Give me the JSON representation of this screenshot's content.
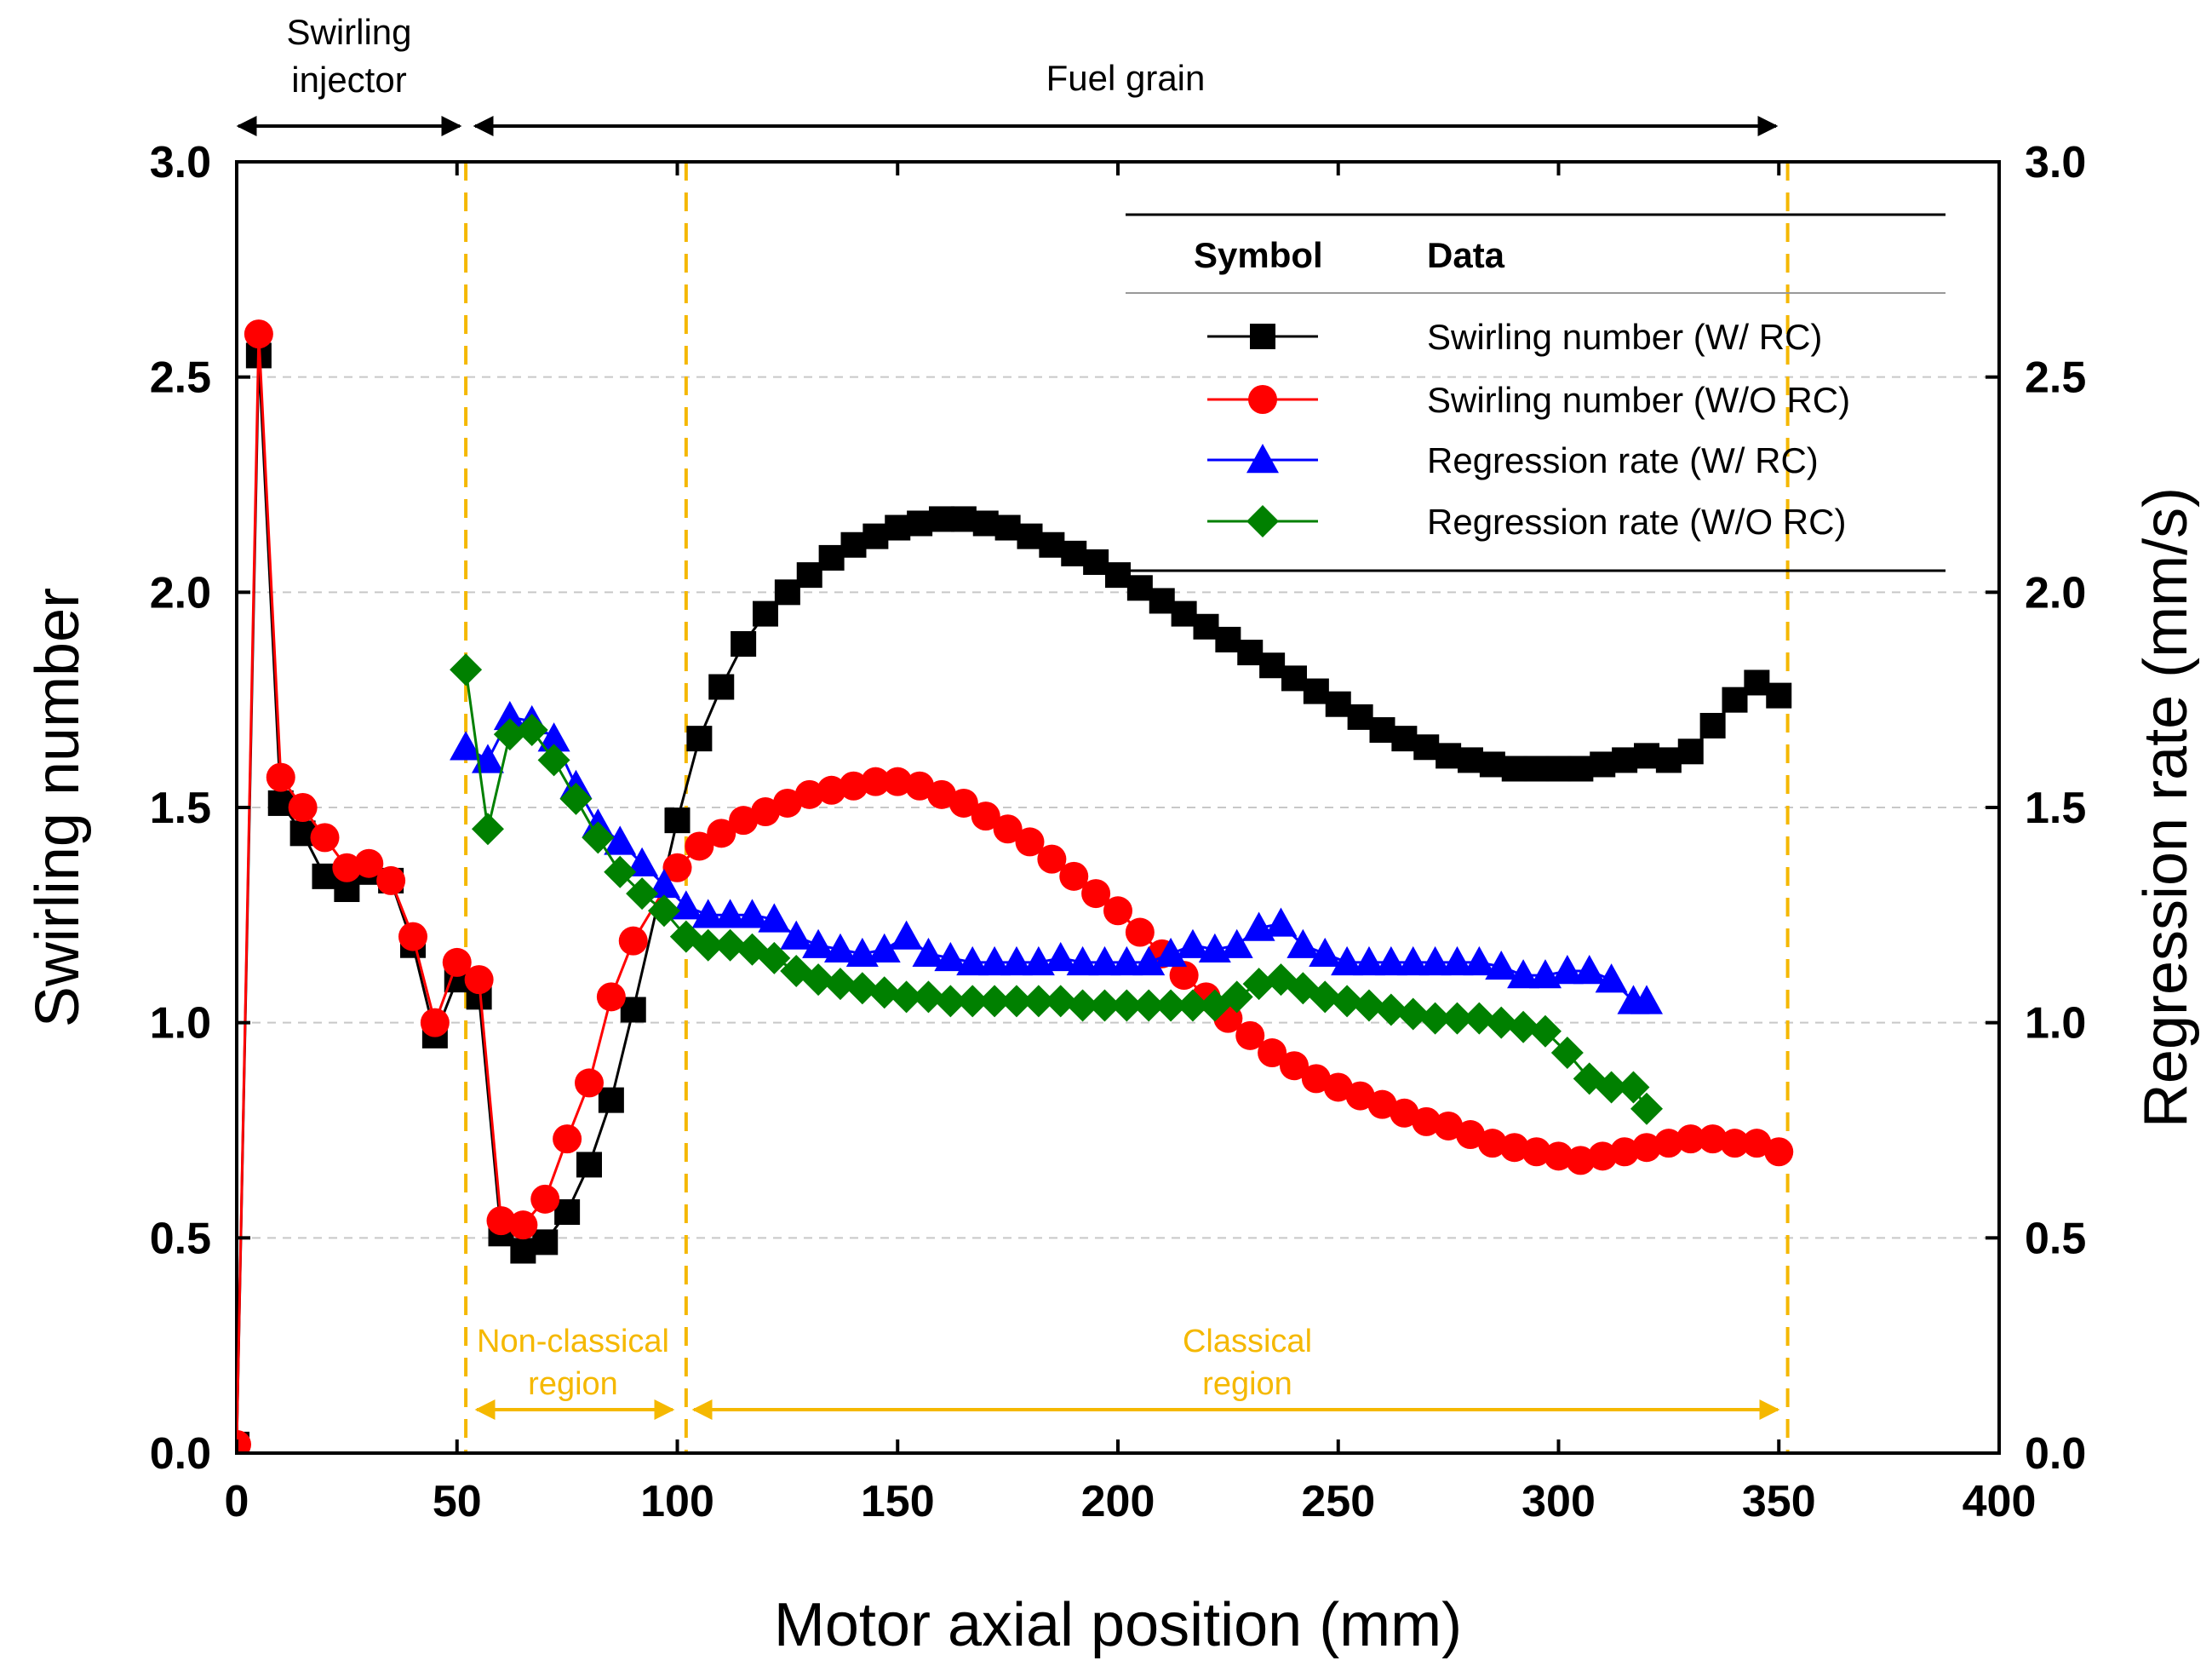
{
  "chart_data": {
    "type": "line",
    "xlabel": "Motor axial position (mm)",
    "ylabel_left": "Swirling number",
    "ylabel_right": "Regression rate (mm/s)",
    "xlim": [
      0,
      400
    ],
    "ylim_left": [
      0.0,
      3.0
    ],
    "ylim_right": [
      0.0,
      3.0
    ],
    "x_ticks": [
      "0",
      "50",
      "100",
      "150",
      "200",
      "250",
      "300",
      "350",
      "400"
    ],
    "y_ticks_left": [
      "0.0",
      "0.5",
      "1.0",
      "1.5",
      "2.0",
      "2.5",
      "3.0"
    ],
    "y_ticks_right": [
      "0.0",
      "0.5",
      "1.0",
      "1.5",
      "2.0",
      "2.5",
      "3.0"
    ],
    "grid": "horizontal dashed",
    "region_boundaries_mm": [
      52,
      102,
      352
    ],
    "annotations": {
      "swirling_injector_line1": "Swirling",
      "swirling_injector_line2": "injector",
      "fuel_grain": "Fuel grain",
      "nonclassical_line1": "Non-classical",
      "nonclassical_line2": "region",
      "classical_line1": "Classical",
      "classical_line2": "region"
    },
    "legend": {
      "placement": "top-right",
      "header_symbol": "Symbol",
      "header_data": "Data"
    },
    "series": [
      {
        "name": "Swirling number (W/ RC)",
        "axis": "left",
        "marker": "square",
        "color": "#000000",
        "x": [
          0,
          5,
          10,
          15,
          20,
          25,
          30,
          35,
          40,
          45,
          50,
          55,
          60,
          65,
          70,
          75,
          80,
          85,
          90,
          100,
          105,
          110,
          115,
          120,
          125,
          130,
          135,
          140,
          145,
          150,
          155,
          160,
          165,
          170,
          175,
          180,
          185,
          190,
          195,
          200,
          205,
          210,
          215,
          220,
          225,
          230,
          235,
          240,
          245,
          250,
          255,
          260,
          265,
          270,
          275,
          280,
          285,
          290,
          295,
          300,
          305,
          310,
          315,
          320,
          325,
          330,
          335,
          340,
          345,
          350
        ],
        "values": [
          0.02,
          2.55,
          1.51,
          1.44,
          1.34,
          1.31,
          1.35,
          1.33,
          1.18,
          0.97,
          1.1,
          1.06,
          0.51,
          0.47,
          0.49,
          0.56,
          0.67,
          0.82,
          1.03,
          1.47,
          1.66,
          1.78,
          1.88,
          1.95,
          2.0,
          2.04,
          2.08,
          2.11,
          2.13,
          2.15,
          2.16,
          2.17,
          2.17,
          2.16,
          2.15,
          2.13,
          2.11,
          2.09,
          2.07,
          2.04,
          2.01,
          1.98,
          1.95,
          1.92,
          1.89,
          1.86,
          1.83,
          1.8,
          1.77,
          1.74,
          1.71,
          1.68,
          1.66,
          1.64,
          1.62,
          1.61,
          1.6,
          1.59,
          1.59,
          1.59,
          1.59,
          1.6,
          1.61,
          1.62,
          1.61,
          1.63,
          1.69,
          1.75,
          1.79,
          1.76
        ]
      },
      {
        "name": "Swirling number (W/O RC)",
        "axis": "left",
        "marker": "circle",
        "color": "#ff0000",
        "x": [
          0,
          5,
          10,
          15,
          20,
          25,
          30,
          35,
          40,
          45,
          50,
          55,
          60,
          65,
          70,
          75,
          80,
          85,
          90,
          100,
          105,
          110,
          115,
          120,
          125,
          130,
          135,
          140,
          145,
          150,
          155,
          160,
          165,
          170,
          175,
          180,
          185,
          190,
          195,
          200,
          205,
          210,
          215,
          220,
          225,
          230,
          235,
          240,
          245,
          250,
          255,
          260,
          265,
          270,
          275,
          280,
          285,
          290,
          295,
          300,
          305,
          310,
          315,
          320,
          325,
          330,
          335,
          340,
          345,
          350
        ],
        "values": [
          0.02,
          2.6,
          1.57,
          1.5,
          1.43,
          1.36,
          1.37,
          1.33,
          1.2,
          1.0,
          1.14,
          1.1,
          0.54,
          0.53,
          0.59,
          0.73,
          0.86,
          1.06,
          1.19,
          1.36,
          1.41,
          1.44,
          1.47,
          1.49,
          1.51,
          1.53,
          1.54,
          1.55,
          1.56,
          1.56,
          1.55,
          1.53,
          1.51,
          1.48,
          1.45,
          1.42,
          1.38,
          1.34,
          1.3,
          1.26,
          1.21,
          1.16,
          1.11,
          1.06,
          1.01,
          0.97,
          0.93,
          0.9,
          0.87,
          0.85,
          0.83,
          0.81,
          0.79,
          0.77,
          0.76,
          0.74,
          0.72,
          0.71,
          0.7,
          0.69,
          0.68,
          0.69,
          0.7,
          0.71,
          0.72,
          0.73,
          0.73,
          0.72,
          0.72,
          0.7
        ]
      },
      {
        "name": "Regression rate (W/ RC)",
        "axis": "right",
        "marker": "triangle",
        "color": "#0000ff",
        "x": [
          52,
          57,
          62,
          67,
          72,
          77,
          82,
          87,
          92,
          97,
          102,
          107,
          112,
          117,
          122,
          127,
          132,
          137,
          142,
          147,
          152,
          157,
          162,
          167,
          172,
          177,
          182,
          187,
          192,
          197,
          202,
          207,
          212,
          217,
          222,
          227,
          232,
          237,
          242,
          247,
          252,
          257,
          262,
          267,
          272,
          277,
          282,
          287,
          292,
          297,
          302,
          307,
          312,
          317,
          320
        ],
        "values": [
          1.64,
          1.61,
          1.71,
          1.7,
          1.66,
          1.55,
          1.46,
          1.42,
          1.37,
          1.32,
          1.27,
          1.25,
          1.25,
          1.25,
          1.24,
          1.2,
          1.18,
          1.17,
          1.16,
          1.17,
          1.2,
          1.16,
          1.15,
          1.14,
          1.14,
          1.14,
          1.14,
          1.15,
          1.14,
          1.14,
          1.14,
          1.14,
          1.16,
          1.18,
          1.17,
          1.18,
          1.22,
          1.23,
          1.18,
          1.16,
          1.14,
          1.14,
          1.14,
          1.14,
          1.14,
          1.14,
          1.14,
          1.13,
          1.11,
          1.11,
          1.12,
          1.12,
          1.1,
          1.05,
          1.05
        ]
      },
      {
        "name": "Regression rate (W/O RC)",
        "axis": "right",
        "marker": "diamond",
        "color": "#008000",
        "x": [
          52,
          57,
          62,
          67,
          72,
          77,
          82,
          87,
          92,
          97,
          102,
          107,
          112,
          117,
          122,
          127,
          132,
          137,
          142,
          147,
          152,
          157,
          162,
          167,
          172,
          177,
          182,
          187,
          192,
          197,
          202,
          207,
          212,
          217,
          222,
          227,
          232,
          237,
          242,
          247,
          252,
          257,
          262,
          267,
          272,
          277,
          282,
          287,
          292,
          297,
          302,
          307,
          312,
          317,
          320
        ],
        "values": [
          1.82,
          1.45,
          1.67,
          1.68,
          1.61,
          1.52,
          1.43,
          1.35,
          1.3,
          1.26,
          1.2,
          1.18,
          1.18,
          1.17,
          1.15,
          1.12,
          1.1,
          1.09,
          1.08,
          1.07,
          1.06,
          1.06,
          1.05,
          1.05,
          1.05,
          1.05,
          1.05,
          1.05,
          1.04,
          1.04,
          1.04,
          1.04,
          1.04,
          1.04,
          1.04,
          1.06,
          1.09,
          1.1,
          1.08,
          1.06,
          1.05,
          1.04,
          1.03,
          1.02,
          1.01,
          1.01,
          1.01,
          1.0,
          0.99,
          0.98,
          0.93,
          0.87,
          0.85,
          0.85,
          0.8
        ]
      }
    ]
  }
}
